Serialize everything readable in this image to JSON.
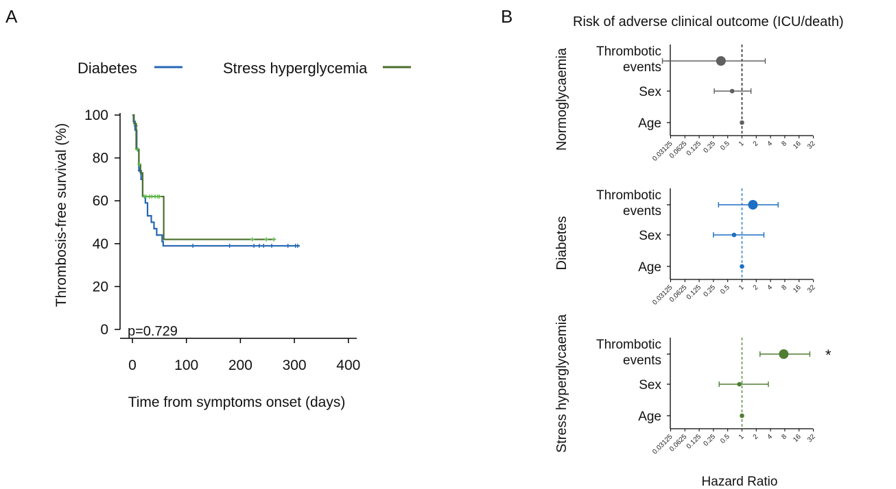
{
  "panels": {
    "a": "A",
    "b": "B"
  },
  "colors": {
    "diabetes": "#2566b5",
    "stress": "#4b6e2b",
    "stress_marker": "#5fbf4a",
    "normo": "#606060",
    "forest_diabetes": "#1c6fc4",
    "forest_stress": "#4f7d31",
    "axis": "#000000"
  },
  "chart_data": [
    {
      "type": "line",
      "subtype": "kaplan-meier",
      "ylabel": "Thrombosis-free survival (%)",
      "xlabel": "Time from symptoms onset (days)",
      "xlim": [
        0,
        400
      ],
      "ylim": [
        0,
        100
      ],
      "xticks": [
        "0",
        "100",
        "200",
        "300",
        "400"
      ],
      "yticks": [
        "0",
        "20",
        "40",
        "60",
        "80",
        "100"
      ],
      "annotation": "p=0.729",
      "legend_position": "top",
      "series": [
        {
          "name": "Diabetes",
          "color": "#2566b5",
          "steps": [
            [
              0,
              100
            ],
            [
              2,
              97
            ],
            [
              5,
              93
            ],
            [
              8,
              84
            ],
            [
              12,
              74
            ],
            [
              16,
              70
            ],
            [
              19,
              62
            ],
            [
              24,
              59
            ],
            [
              28,
              53
            ],
            [
              35,
              50
            ],
            [
              40,
              47
            ],
            [
              45,
              44
            ],
            [
              55,
              41
            ],
            [
              57,
              39
            ],
            [
              310,
              39
            ]
          ],
          "censored": [
            [
              6,
              95
            ],
            [
              10,
              84
            ],
            [
              14,
              74
            ],
            [
              112,
              39
            ],
            [
              180,
              39
            ],
            [
              225,
              39
            ],
            [
              235,
              39
            ],
            [
              243,
              39
            ],
            [
              258,
              39
            ],
            [
              288,
              39
            ],
            [
              302,
              39
            ],
            [
              306,
              39
            ]
          ]
        },
        {
          "name": "Stress hyperglycemia",
          "color": "#4b6e2b",
          "steps": [
            [
              0,
              100
            ],
            [
              3,
              96
            ],
            [
              7,
              84
            ],
            [
              12,
              77
            ],
            [
              15,
              73
            ],
            [
              19,
              62
            ],
            [
              57,
              62
            ],
            [
              58,
              42
            ],
            [
              265,
              42
            ]
          ],
          "censored": [
            [
              9,
              84
            ],
            [
              13,
              77
            ],
            [
              22,
              62
            ],
            [
              25,
              62
            ],
            [
              32,
              62
            ],
            [
              36,
              62
            ],
            [
              42,
              62
            ],
            [
              47,
              62
            ],
            [
              50,
              62
            ],
            [
              222,
              42
            ],
            [
              248,
              42
            ],
            [
              262,
              42
            ]
          ]
        }
      ]
    },
    {
      "type": "scatter",
      "subtype": "forest-plot",
      "title": "Risk of adverse clinical outcome (ICU/death)",
      "xlabel": "Hazard Ratio",
      "x_scale": "log2",
      "xticks": [
        "0.03125",
        "0.0625",
        "0.125",
        "0.25",
        "0.5",
        "1",
        "2",
        "4",
        "8",
        "16",
        "32"
      ],
      "reference_line": 1,
      "groups": [
        {
          "name": "Normoglycaemia",
          "color": "#606060",
          "rows": [
            {
              "label_lines": [
                "Thrombotic",
                "events"
              ],
              "hr": 0.36,
              "lo": 0.021,
              "hi": 3.1
            },
            {
              "label_lines": [
                "Sex"
              ],
              "hr": 0.62,
              "lo": 0.26,
              "hi": 1.55
            },
            {
              "label_lines": [
                "Age"
              ],
              "hr": 1.0,
              "lo": 0.98,
              "hi": 1.02
            }
          ]
        },
        {
          "name": "Diabetes",
          "color": "#1c6fc4",
          "rows": [
            {
              "label_lines": [
                "Thrombotic",
                "events"
              ],
              "hr": 1.7,
              "lo": 0.32,
              "hi": 5.8
            },
            {
              "label_lines": [
                "Sex"
              ],
              "hr": 0.68,
              "lo": 0.25,
              "hi": 2.9
            },
            {
              "label_lines": [
                "Age"
              ],
              "hr": 1.0,
              "lo": 0.98,
              "hi": 1.02
            }
          ]
        },
        {
          "name": "Stress hyperglycaemia",
          "color": "#4f7d31",
          "significance_marker": "*",
          "rows": [
            {
              "label_lines": [
                "Thrombotic",
                "events"
              ],
              "hr": 7.6,
              "lo": 2.4,
              "hi": 27,
              "significant": true
            },
            {
              "label_lines": [
                "Sex"
              ],
              "hr": 0.88,
              "lo": 0.33,
              "hi": 3.6
            },
            {
              "label_lines": [
                "Age"
              ],
              "hr": 1.0,
              "lo": 0.98,
              "hi": 1.02
            }
          ]
        }
      ]
    }
  ]
}
